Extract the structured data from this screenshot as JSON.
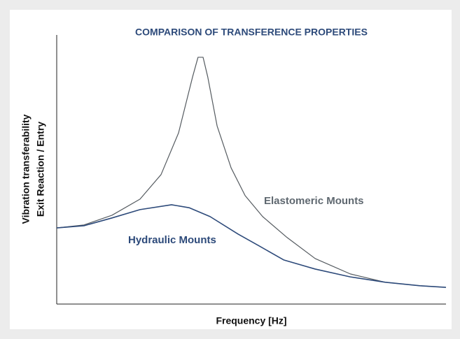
{
  "chart_data": {
    "type": "line",
    "title": "COMPARISON OF TRANSFERENCE PROPERTIES",
    "x_label": "Frequency [Hz]",
    "y_label": [
      "Vibration transferability",
      "Exit Reaction / Entry"
    ],
    "xlim": [
      0,
      100
    ],
    "ylim": [
      0,
      100
    ],
    "series": [
      {
        "name": "Elastomeric Mounts",
        "color": "#555b60",
        "label_color": "#5f6870",
        "x": [
          0,
          7.0,
          14.2,
          21.4,
          26.8,
          31.3,
          34.9,
          36.3,
          37.6,
          38.8,
          41.2,
          44.8,
          48.4,
          52.9,
          59.2,
          66.4,
          75.4,
          84.4,
          93.3,
          100
        ],
        "values": [
          28.3,
          29.4,
          33.0,
          39.0,
          48.1,
          63.6,
          84.4,
          91.7,
          91.7,
          84.4,
          66.2,
          50.6,
          40.3,
          32.5,
          24.7,
          16.9,
          11.2,
          8.1,
          6.8,
          6.2
        ]
      },
      {
        "name": "Hydraulic Mounts",
        "color": "#2d4a7a",
        "label_color": "#2d4a7a",
        "x": [
          0,
          7.0,
          14.2,
          21.4,
          29.5,
          34.0,
          39.4,
          46.6,
          52.0,
          58.3,
          66.4,
          75.4,
          84.4,
          93.3,
          100
        ],
        "values": [
          28.3,
          29.1,
          32.0,
          35.1,
          36.9,
          35.8,
          32.5,
          26.0,
          21.6,
          16.4,
          13.0,
          10.1,
          8.1,
          6.8,
          6.2
        ]
      }
    ]
  }
}
